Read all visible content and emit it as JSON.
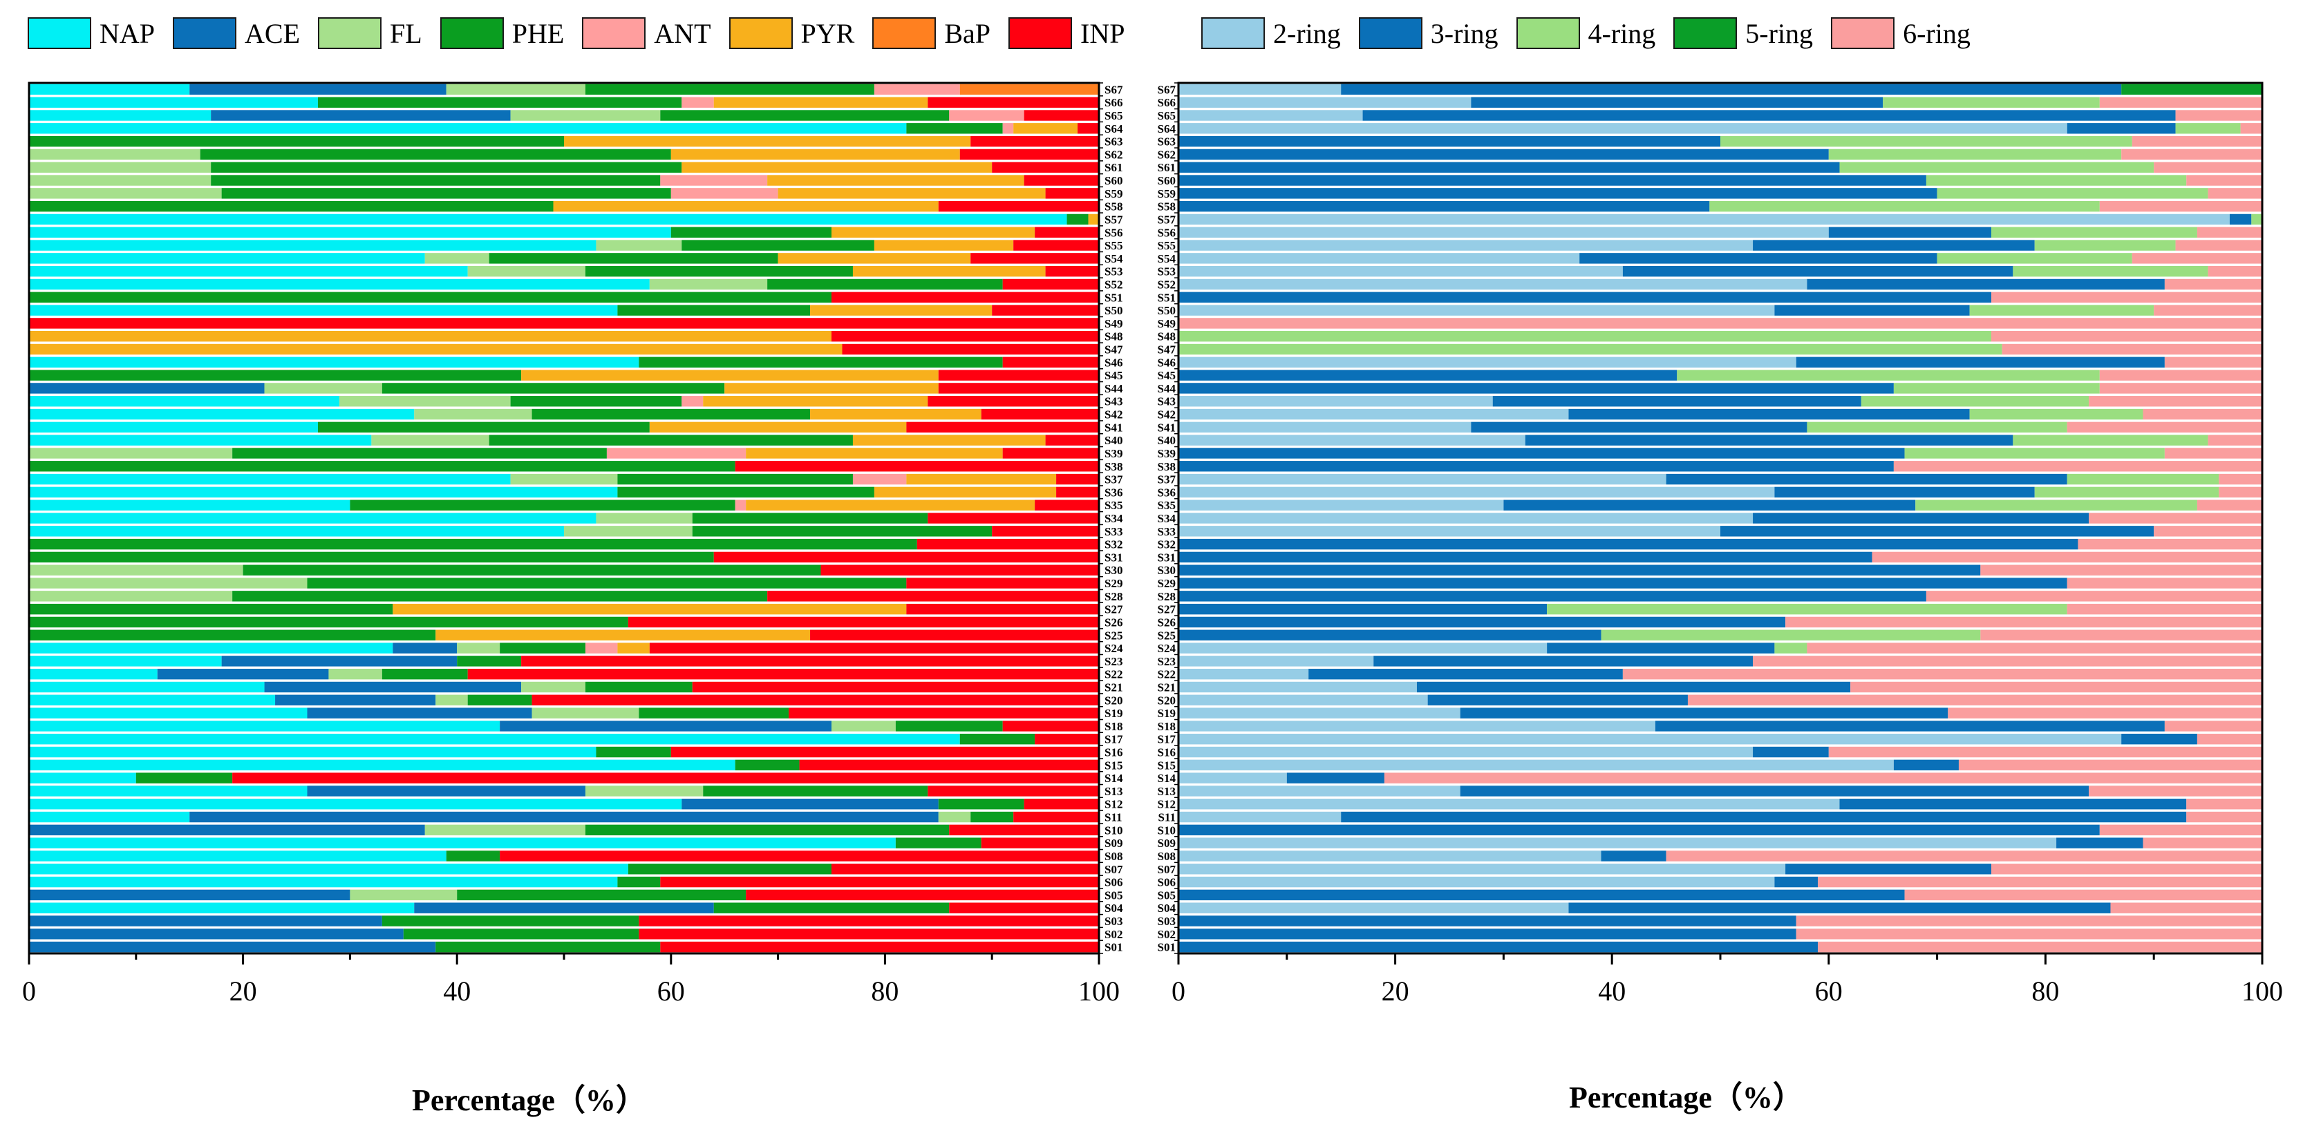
{
  "chart_data": [
    {
      "type": "bar",
      "orientation": "horizontal",
      "stacked": true,
      "xlabel": "Percentage（%）",
      "xlim": [
        0,
        100
      ],
      "xticks": [
        "0",
        "20",
        "40",
        "60",
        "80",
        "100"
      ],
      "legend_position": "top",
      "series_names": [
        "NAP",
        "ACE",
        "FL",
        "PHE",
        "ANT",
        "PYR",
        "BaP",
        "INP"
      ],
      "colors": [
        "#00f0f5",
        "#0b70b8",
        "#a6e08c",
        "#0a9e20",
        "#ff9e9e",
        "#f8b01c",
        "#ff8020",
        "#ff0010"
      ],
      "categories": [
        "S01",
        "S02",
        "S03",
        "S04",
        "S05",
        "S06",
        "S07",
        "S08",
        "S09",
        "S10",
        "S11",
        "S12",
        "S13",
        "S14",
        "S15",
        "S16",
        "S17",
        "S18",
        "S19",
        "S20",
        "S21",
        "S22",
        "S23",
        "S24",
        "S25",
        "S26",
        "S27",
        "S28",
        "S29",
        "S30",
        "S31",
        "S32",
        "S33",
        "S34",
        "S35",
        "S36",
        "S37",
        "S38",
        "S39",
        "S40",
        "S41",
        "S42",
        "S43",
        "S44",
        "S45",
        "S46",
        "S47",
        "S48",
        "S49",
        "S50",
        "S51",
        "S52",
        "S53",
        "S54",
        "S55",
        "S56",
        "S57",
        "S58",
        "S59",
        "S60",
        "S61",
        "S62",
        "S63",
        "S64",
        "S65",
        "S66",
        "S67"
      ],
      "values": [
        [
          0,
          38,
          0,
          21,
          0,
          0,
          0,
          41
        ],
        [
          0,
          35,
          0,
          22,
          0,
          0,
          0,
          43
        ],
        [
          0,
          33,
          0,
          24,
          0,
          0,
          0,
          43
        ],
        [
          36,
          28,
          0,
          22,
          0,
          0,
          0,
          14
        ],
        [
          0,
          30,
          10,
          27,
          0,
          0,
          0,
          33
        ],
        [
          55,
          0,
          0,
          4,
          0,
          0,
          0,
          41
        ],
        [
          56,
          0,
          0,
          19,
          0,
          0,
          0,
          25
        ],
        [
          39,
          0,
          0,
          5,
          0,
          0,
          0,
          56
        ],
        [
          81,
          0,
          0,
          8,
          0,
          0,
          0,
          11
        ],
        [
          0,
          37,
          15,
          34,
          0,
          0,
          0,
          14
        ],
        [
          15,
          70,
          3,
          4,
          0,
          0,
          0,
          8
        ],
        [
          61,
          24,
          0,
          8,
          0,
          0,
          0,
          7
        ],
        [
          26,
          26,
          11,
          21,
          0,
          0,
          0,
          16
        ],
        [
          10,
          0,
          0,
          9,
          0,
          0,
          0,
          81
        ],
        [
          66,
          0,
          0,
          6,
          0,
          0,
          0,
          28
        ],
        [
          53,
          0,
          0,
          7,
          0,
          0,
          0,
          40
        ],
        [
          87,
          0,
          0,
          7,
          0,
          0,
          0,
          6
        ],
        [
          44,
          31,
          6,
          10,
          0,
          0,
          0,
          9
        ],
        [
          26,
          21,
          10,
          14,
          0,
          0,
          0,
          29
        ],
        [
          23,
          15,
          3,
          6,
          0,
          0,
          0,
          53
        ],
        [
          22,
          24,
          6,
          10,
          0,
          0,
          0,
          38
        ],
        [
          12,
          16,
          5,
          8,
          0,
          0,
          0,
          59
        ],
        [
          18,
          22,
          0,
          6,
          0,
          0,
          0,
          54
        ],
        [
          34,
          6,
          4,
          8,
          3,
          3,
          0,
          42
        ],
        [
          0,
          0,
          0,
          38,
          0,
          35,
          0,
          27
        ],
        [
          0,
          0,
          0,
          56,
          0,
          0,
          0,
          44
        ],
        [
          0,
          0,
          0,
          34,
          0,
          48,
          0,
          18
        ],
        [
          0,
          0,
          19,
          50,
          0,
          0,
          0,
          31
        ],
        [
          0,
          0,
          26,
          56,
          0,
          0,
          0,
          18
        ],
        [
          0,
          0,
          20,
          54,
          0,
          0,
          0,
          26
        ],
        [
          0,
          0,
          0,
          64,
          0,
          0,
          0,
          36
        ],
        [
          0,
          0,
          0,
          83,
          0,
          0,
          0,
          17
        ],
        [
          50,
          0,
          12,
          28,
          0,
          0,
          0,
          10
        ],
        [
          53,
          0,
          9,
          22,
          0,
          0,
          0,
          16
        ],
        [
          30,
          0,
          0,
          36,
          1,
          27,
          0,
          6
        ],
        [
          55,
          0,
          0,
          24,
          0,
          17,
          0,
          4
        ],
        [
          45,
          0,
          10,
          22,
          5,
          14,
          0,
          4
        ],
        [
          0,
          0,
          0,
          66,
          0,
          0,
          0,
          34
        ],
        [
          0,
          0,
          19,
          35,
          13,
          24,
          0,
          9
        ],
        [
          32,
          0,
          11,
          34,
          0,
          18,
          0,
          5
        ],
        [
          27,
          0,
          0,
          31,
          0,
          24,
          0,
          18
        ],
        [
          36,
          0,
          11,
          26,
          0,
          16,
          0,
          11
        ],
        [
          29,
          0,
          16,
          16,
          2,
          21,
          0,
          16
        ],
        [
          0,
          22,
          11,
          32,
          0,
          20,
          0,
          15
        ],
        [
          0,
          0,
          0,
          46,
          0,
          39,
          0,
          15
        ],
        [
          57,
          0,
          0,
          34,
          0,
          0,
          0,
          9
        ],
        [
          0,
          0,
          0,
          0,
          0,
          76,
          0,
          24
        ],
        [
          0,
          0,
          0,
          0,
          0,
          75,
          0,
          25
        ],
        [
          0,
          0,
          0,
          0,
          0,
          0,
          0,
          100
        ],
        [
          55,
          0,
          0,
          18,
          0,
          17,
          0,
          10
        ],
        [
          0,
          0,
          0,
          75,
          0,
          0,
          0,
          25
        ],
        [
          58,
          0,
          11,
          22,
          0,
          0,
          0,
          9
        ],
        [
          41,
          0,
          11,
          25,
          0,
          18,
          0,
          5
        ],
        [
          37,
          0,
          6,
          27,
          0,
          18,
          0,
          12
        ],
        [
          53,
          0,
          8,
          18,
          0,
          13,
          0,
          8
        ],
        [
          60,
          0,
          0,
          15,
          0,
          19,
          0,
          6
        ],
        [
          97,
          0,
          0,
          2,
          0,
          1,
          0,
          0
        ],
        [
          0,
          0,
          0,
          49,
          0,
          36,
          0,
          15
        ],
        [
          0,
          0,
          18,
          42,
          10,
          25,
          0,
          5
        ],
        [
          0,
          0,
          17,
          42,
          10,
          24,
          0,
          7
        ],
        [
          0,
          0,
          17,
          44,
          0,
          29,
          0,
          10
        ],
        [
          0,
          0,
          16,
          44,
          0,
          27,
          0,
          13
        ],
        [
          0,
          0,
          0,
          50,
          0,
          38,
          0,
          12
        ],
        [
          82,
          0,
          0,
          9,
          1,
          6,
          0,
          2
        ],
        [
          17,
          28,
          14,
          27,
          7,
          0,
          0,
          7
        ],
        [
          27,
          0,
          0,
          34,
          3,
          20,
          0,
          16
        ],
        [
          15,
          24,
          13,
          27,
          8,
          0,
          13,
          0
        ]
      ]
    },
    {
      "type": "bar",
      "orientation": "horizontal",
      "stacked": true,
      "xlabel": "Percentage（%）",
      "xlim": [
        0,
        100
      ],
      "xticks": [
        "0",
        "20",
        "40",
        "60",
        "80",
        "100"
      ],
      "legend_position": "top",
      "series_names": [
        "2-ring",
        "3-ring",
        "4-ring",
        "5-ring",
        "6-ring"
      ],
      "colors": [
        "#96cde6",
        "#0a70b8",
        "#9ade80",
        "#0a9e28",
        "#fa9e9e"
      ],
      "categories": [
        "S01",
        "S02",
        "S03",
        "S04",
        "S05",
        "S06",
        "S07",
        "S08",
        "S09",
        "S10",
        "S11",
        "S12",
        "S13",
        "S14",
        "S15",
        "S16",
        "S17",
        "S18",
        "S19",
        "S20",
        "S21",
        "S22",
        "S23",
        "S24",
        "S25",
        "S26",
        "S27",
        "S28",
        "S29",
        "S30",
        "S31",
        "S32",
        "S33",
        "S34",
        "S35",
        "S36",
        "S37",
        "S38",
        "S39",
        "S40",
        "S41",
        "S42",
        "S43",
        "S44",
        "S45",
        "S46",
        "S47",
        "S48",
        "S49",
        "S50",
        "S51",
        "S52",
        "S53",
        "S54",
        "S55",
        "S56",
        "S57",
        "S58",
        "S59",
        "S60",
        "S61",
        "S62",
        "S63",
        "S64",
        "S65",
        "S66",
        "S67"
      ],
      "values": [
        [
          0,
          59,
          0,
          0,
          41
        ],
        [
          0,
          57,
          0,
          0,
          43
        ],
        [
          0,
          57,
          0,
          0,
          43
        ],
        [
          36,
          50,
          0,
          0,
          14
        ],
        [
          0,
          67,
          0,
          0,
          33
        ],
        [
          55,
          4,
          0,
          0,
          41
        ],
        [
          56,
          19,
          0,
          0,
          25
        ],
        [
          39,
          6,
          0,
          0,
          55
        ],
        [
          81,
          8,
          0,
          0,
          11
        ],
        [
          0,
          85,
          0,
          0,
          15
        ],
        [
          15,
          78,
          0,
          0,
          7
        ],
        [
          61,
          32,
          0,
          0,
          7
        ],
        [
          26,
          58,
          0,
          0,
          16
        ],
        [
          10,
          9,
          0,
          0,
          81
        ],
        [
          66,
          6,
          0,
          0,
          28
        ],
        [
          53,
          7,
          0,
          0,
          40
        ],
        [
          87,
          7,
          0,
          0,
          6
        ],
        [
          44,
          47,
          0,
          0,
          9
        ],
        [
          26,
          45,
          0,
          0,
          29
        ],
        [
          23,
          24,
          0,
          0,
          53
        ],
        [
          22,
          40,
          0,
          0,
          38
        ],
        [
          12,
          29,
          0,
          0,
          59
        ],
        [
          18,
          35,
          0,
          0,
          47
        ],
        [
          34,
          21,
          3,
          0,
          42
        ],
        [
          0,
          39,
          35,
          0,
          26
        ],
        [
          0,
          56,
          0,
          0,
          44
        ],
        [
          0,
          34,
          48,
          0,
          18
        ],
        [
          0,
          69,
          0,
          0,
          31
        ],
        [
          0,
          82,
          0,
          0,
          18
        ],
        [
          0,
          74,
          0,
          0,
          26
        ],
        [
          0,
          64,
          0,
          0,
          36
        ],
        [
          0,
          83,
          0,
          0,
          17
        ],
        [
          50,
          40,
          0,
          0,
          10
        ],
        [
          53,
          31,
          0,
          0,
          16
        ],
        [
          30,
          38,
          26,
          0,
          6
        ],
        [
          55,
          24,
          17,
          0,
          4
        ],
        [
          45,
          37,
          14,
          0,
          4
        ],
        [
          0,
          66,
          0,
          0,
          34
        ],
        [
          0,
          67,
          24,
          0,
          9
        ],
        [
          32,
          45,
          18,
          0,
          5
        ],
        [
          27,
          31,
          24,
          0,
          18
        ],
        [
          36,
          37,
          16,
          0,
          11
        ],
        [
          29,
          34,
          21,
          0,
          16
        ],
        [
          0,
          66,
          19,
          0,
          15
        ],
        [
          0,
          46,
          39,
          0,
          15
        ],
        [
          57,
          34,
          0,
          0,
          9
        ],
        [
          0,
          0,
          76,
          0,
          24
        ],
        [
          0,
          0,
          75,
          0,
          25
        ],
        [
          0,
          0,
          0,
          0,
          100
        ],
        [
          55,
          18,
          17,
          0,
          10
        ],
        [
          0,
          75,
          0,
          0,
          25
        ],
        [
          58,
          33,
          0,
          0,
          9
        ],
        [
          41,
          36,
          18,
          0,
          5
        ],
        [
          37,
          33,
          18,
          0,
          12
        ],
        [
          53,
          26,
          13,
          0,
          8
        ],
        [
          60,
          15,
          19,
          0,
          6
        ],
        [
          97,
          2,
          1,
          0,
          0
        ],
        [
          0,
          49,
          36,
          0,
          15
        ],
        [
          0,
          70,
          25,
          0,
          5
        ],
        [
          0,
          69,
          24,
          0,
          7
        ],
        [
          0,
          61,
          29,
          0,
          10
        ],
        [
          0,
          60,
          27,
          0,
          13
        ],
        [
          0,
          50,
          38,
          0,
          12
        ],
        [
          82,
          10,
          6,
          0,
          2
        ],
        [
          17,
          75,
          0,
          0,
          8
        ],
        [
          27,
          38,
          20,
          0,
          15
        ],
        [
          15,
          72,
          0,
          13,
          0
        ]
      ]
    }
  ]
}
